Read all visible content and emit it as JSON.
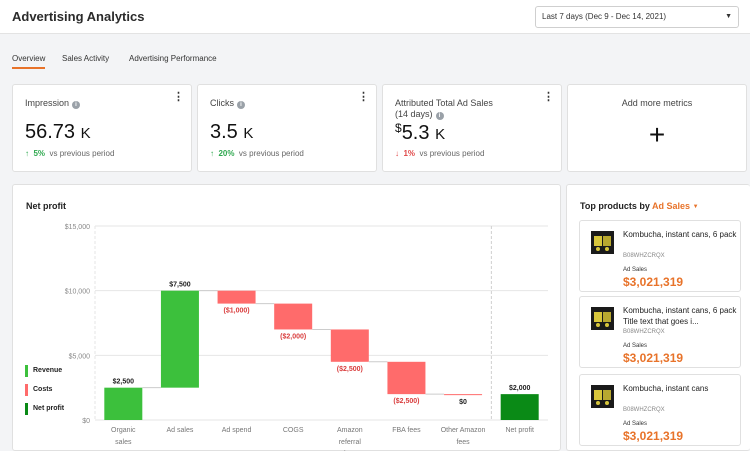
{
  "header": {
    "title": "Advertising Analytics",
    "date_range": "Last 7 days (Dec 9 - Dec 14, 2021)"
  },
  "tabs": [
    {
      "label": "Overview",
      "active": true
    },
    {
      "label": "Sales Activity",
      "active": false
    },
    {
      "label": "Advertising Performance",
      "active": false
    }
  ],
  "metrics": [
    {
      "label": "Impression",
      "value": "56.73",
      "unit": "K",
      "currency": "",
      "direction": "up",
      "pct": "5%",
      "compare": "vs previous period"
    },
    {
      "label": "Clicks",
      "value": "3.5",
      "unit": "K",
      "currency": "",
      "direction": "up",
      "pct": "20%",
      "compare": "vs previous period"
    },
    {
      "label_line1": "Attributed Total Ad Sales",
      "label_line2": "(14 days)",
      "value": "5.3",
      "unit": "K",
      "currency": "$",
      "direction": "down",
      "pct": "1%",
      "compare": "vs previous period"
    }
  ],
  "add_metrics": {
    "label": "Add more metrics",
    "icon": "+"
  },
  "net_profit": {
    "title": "Net profit",
    "legend": [
      {
        "label": "Revenue",
        "color": "#3cc03c"
      },
      {
        "label": "Costs",
        "color": "#ff6b6b"
      },
      {
        "label": "Net profit",
        "color": "#0a8a16"
      }
    ]
  },
  "chart_data": {
    "type": "bar",
    "subtype": "waterfall",
    "title": "Net profit",
    "categories": [
      "Organic sales",
      "Ad sales",
      "Ad spend",
      "COGS",
      "Amazon referral fees",
      "FBA fees",
      "Other Amazon fees",
      "Net profit"
    ],
    "values": [
      2500,
      7500,
      -1000,
      -2000,
      -2500,
      -2500,
      0,
      2000
    ],
    "kinds": [
      "revenue",
      "revenue",
      "cost",
      "cost",
      "cost",
      "cost",
      "cost",
      "net"
    ],
    "data_labels": [
      "$2,500",
      "$7,500",
      "($1,000)",
      "($2,000)",
      "($2,500)",
      "($2,500)",
      "$0",
      "$2,000"
    ],
    "y_ticks": [
      "$0",
      "$5,000",
      "$10,000",
      "$15,000"
    ],
    "y_tick_values": [
      0,
      5000,
      10000,
      15000
    ],
    "ylim": [
      0,
      15000
    ],
    "grid": true,
    "legend_position": "left"
  },
  "top_products": {
    "title_prefix": "Top products by",
    "metric": "Ad Sales",
    "caret": "▼",
    "items": [
      {
        "name": "Kombucha, instant cans, 6 pack",
        "asin": "B08WHZCRQX",
        "label": "Ad Sales",
        "value": "$3,021,319"
      },
      {
        "name": "Kombucha, instant cans, 6 pack Title text that goes i...",
        "asin": "B08WHZCRQX",
        "label": "Ad Sales",
        "value": "$3,021,319"
      },
      {
        "name": "Kombucha, instant cans",
        "asin": "B08WHZCRQX",
        "label": "Ad Sales",
        "value": "$3,021,319"
      }
    ]
  }
}
